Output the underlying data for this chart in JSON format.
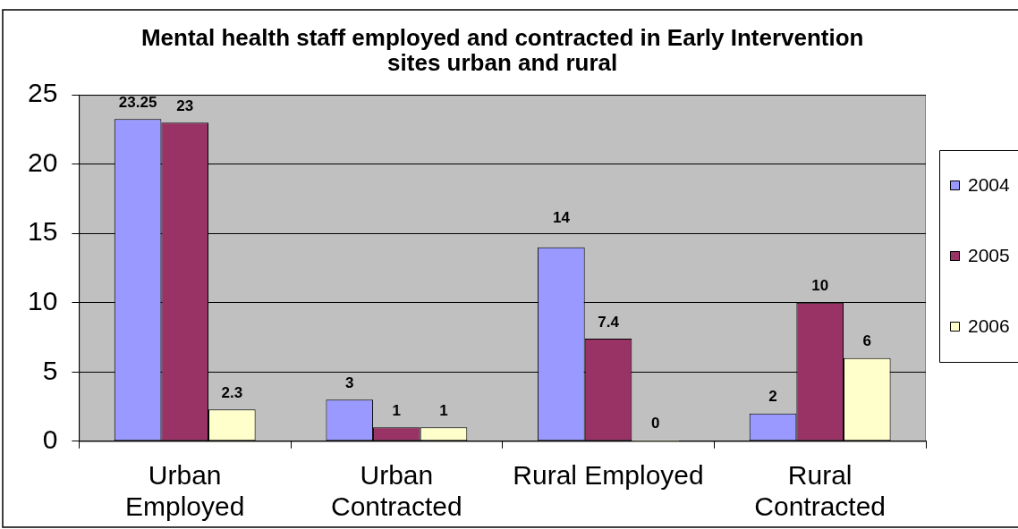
{
  "chart_data": {
    "type": "bar",
    "title": "Mental health staff employed and contracted in Early Intervention sites urban and rural",
    "categories": [
      "Urban Employed",
      "Urban Contracted",
      "Rural Employed",
      "Rural Contracted"
    ],
    "series": [
      {
        "name": "2004",
        "color": "#9999ff",
        "values": [
          23.25,
          3,
          14,
          2
        ]
      },
      {
        "name": "2005",
        "color": "#993366",
        "values": [
          23,
          1,
          7.4,
          10
        ]
      },
      {
        "name": "2006",
        "color": "#ffffcc",
        "values": [
          2.3,
          1,
          0,
          6
        ]
      }
    ],
    "ylim": [
      0,
      25
    ],
    "yticks": [
      0,
      5,
      10,
      15,
      20,
      25
    ],
    "grid": "y",
    "legend": "right",
    "data_labels": true
  }
}
